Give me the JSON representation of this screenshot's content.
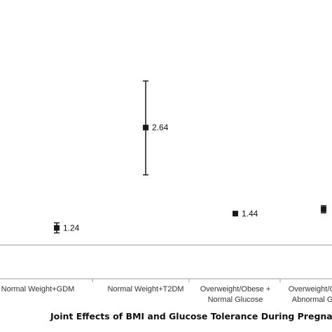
{
  "chart_data": {
    "type": "scatter",
    "title": "",
    "xlabel": "Joint Effects of BMI and Glucose Tolerance During Pregnancy",
    "ylabel": "",
    "categories": [
      [
        "Normal Weight+GDM"
      ],
      [
        "Normal Weight+T2DM"
      ],
      [
        "Overweight/Obese +",
        "Normal Glucose"
      ],
      [
        "Overweight/Obese +",
        "Abnormal Glucose"
      ]
    ],
    "values": [
      1.24,
      2.64,
      1.44,
      1.5
    ],
    "value_labels": [
      "1.24",
      "2.64",
      "1.44",
      ""
    ],
    "ci_lower": [
      1.17,
      1.98,
      1.41,
      1.45
    ],
    "ci_upper": [
      1.31,
      3.29,
      1.47,
      1.55
    ],
    "reference_line": 1.0,
    "ylim": [
      0,
      4.5
    ],
    "grid": false,
    "colors": {
      "marker": "#1a1a1a",
      "axis": "#888888",
      "text": "#111111"
    }
  }
}
